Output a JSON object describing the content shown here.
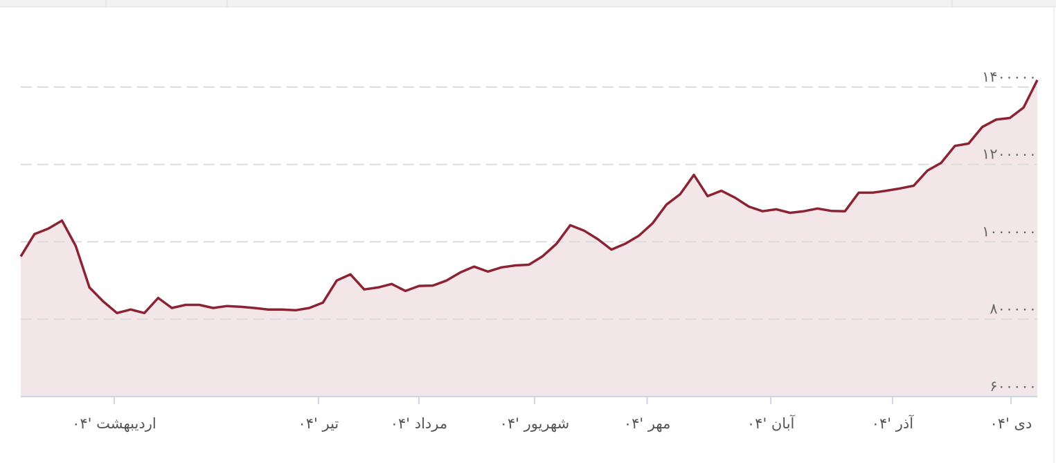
{
  "chart_data": {
    "type": "line",
    "values": [
      962000,
      1020000,
      1034000,
      1055000,
      989000,
      882000,
      846000,
      816000,
      825000,
      816000,
      855000,
      829000,
      837000,
      837000,
      829000,
      834000,
      832000,
      829000,
      825000,
      825000,
      823000,
      829000,
      843000,
      900000,
      916000,
      877000,
      882000,
      891000,
      873000,
      886000,
      887000,
      900000,
      921000,
      936000,
      923000,
      934000,
      939000,
      941000,
      963000,
      995000,
      1043000,
      1029000,
      1007000,
      980000,
      995000,
      1016000,
      1048000,
      1096000,
      1123000,
      1173000,
      1118000,
      1132000,
      1114000,
      1091000,
      1079000,
      1084000,
      1075000,
      1079000,
      1086000,
      1080000,
      1079000,
      1127000,
      1127000,
      1132000,
      1138000,
      1145000,
      1184000,
      1204000,
      1248000,
      1254000,
      1297000,
      1316000,
      1320000,
      1347000,
      1418000
    ],
    "color": "#8b2332",
    "fill_color": "#f3e6e8",
    "xlim": [
      0,
      74
    ],
    "xticks": [
      {
        "value": 6.8,
        "label": "اردیبهشت '۰۴"
      },
      {
        "value": 21.67,
        "label": "تیر '۰۴"
      },
      {
        "value": 28.98,
        "label": "مرداد '۰۴"
      },
      {
        "value": 37.4,
        "label": "شهریور '۰۴"
      },
      {
        "value": 45.6,
        "label": "مهر '۰۴"
      },
      {
        "value": 54.6,
        "label": "آبان '۰۴"
      },
      {
        "value": 63.46,
        "label": "آذر '۰۴"
      },
      {
        "value": 72.08,
        "label": "دی '۰۴"
      }
    ],
    "ylim": [
      600000,
      1600000
    ],
    "yticks": [
      {
        "value": 600000,
        "label": "۶۰۰۰۰۰"
      },
      {
        "value": 800000,
        "label": "۸۰۰۰۰۰"
      },
      {
        "value": 1000000,
        "label": "۱۰۰۰۰۰۰"
      },
      {
        "value": 1200000,
        "label": "۱۲۰۰۰۰۰"
      },
      {
        "value": 1400000,
        "label": "۱۴۰۰۰۰۰"
      }
    ],
    "grid": true
  }
}
